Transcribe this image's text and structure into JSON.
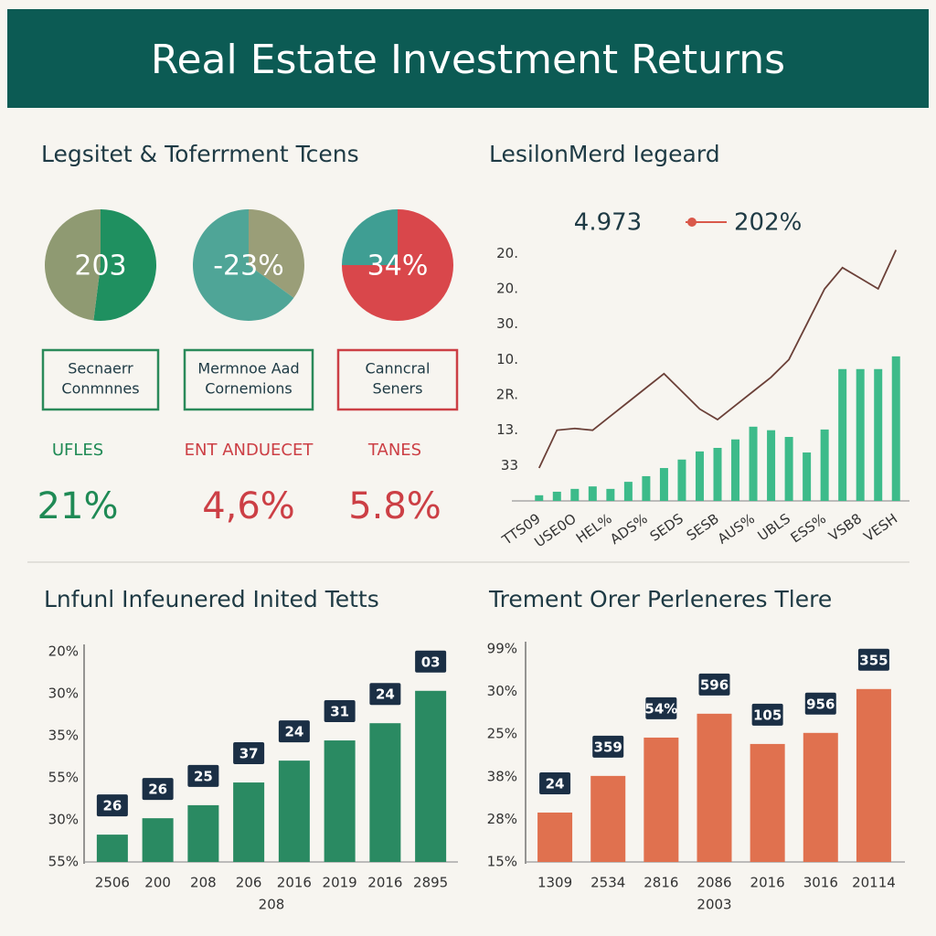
{
  "header": {
    "title": "Real Estate Investment Returns"
  },
  "summary": {
    "title": "Legsitet & Toferrment Tcens",
    "pies": [
      {
        "label": "203",
        "values": [
          52,
          48
        ],
        "colors": [
          "#1f9060",
          "#8f9a72"
        ]
      },
      {
        "label": "-23%",
        "values": [
          35,
          65
        ],
        "colors": [
          "#9a9e78",
          "#4fa597"
        ]
      },
      {
        "label": "34%",
        "values": [
          75,
          25
        ],
        "colors": [
          "#d9474b",
          "#3f9e93"
        ]
      }
    ],
    "boxes": [
      {
        "lines": [
          "Secnaerr",
          "Conmnnes"
        ],
        "color": "#2a8a5a"
      },
      {
        "lines": [
          "Mermnoe Aad",
          "Cornemions"
        ],
        "color": "#2a8a5a"
      },
      {
        "lines": [
          "Canncral",
          "Seners"
        ],
        "color": "#cc3f45"
      }
    ],
    "stats": [
      {
        "label": "UFLES",
        "value": "21%",
        "color": "#1f8a55"
      },
      {
        "label": "ENT ANDUECET",
        "value": "4,6%",
        "color": "#cc3f45"
      },
      {
        "label": "TANES",
        "value": "5.8%",
        "color": "#cc3f45"
      }
    ]
  },
  "chart_data": [
    {
      "type": "combo",
      "title": "LesilonMerd Iegeard",
      "categories": [
        "TTS09",
        null,
        "USE0O",
        null,
        "HEL%",
        null,
        "ADS%",
        null,
        "SEDS",
        null,
        "SESB",
        null,
        "AUS%",
        null,
        "UBLS",
        null,
        "ESS%",
        null,
        "VSB8",
        null,
        "VESH"
      ],
      "series": [
        {
          "name": "4.973",
          "type": "bar",
          "color": "#3dbb8a",
          "values": [
            0.16,
            0.26,
            0.34,
            0.41,
            0.34,
            0.54,
            0.7,
            0.93,
            1.17,
            1.4,
            1.5,
            1.74,
            2.1,
            2.0,
            1.81,
            1.37,
            2.02,
            3.73,
            3.73,
            3.73,
            4.09
          ]
        },
        {
          "name": "202%",
          "type": "line",
          "color": "#6b4038",
          "marker_color": "#d9584a",
          "values": [
            0.93,
            2.0,
            2.05,
            2.0,
            2.4,
            2.8,
            3.2,
            3.6,
            3.1,
            2.6,
            2.3,
            2.7,
            3.1,
            3.5,
            4.0,
            5.0,
            6.0,
            6.6,
            6.3,
            6.0,
            7.1
          ]
        }
      ],
      "ylim": [
        0,
        7.5
      ],
      "yticks": [
        {
          "value": 1,
          "label": "33"
        },
        {
          "value": 2,
          "label": "13."
        },
        {
          "value": 3,
          "label": "2R."
        },
        {
          "value": 4,
          "label": "10."
        },
        {
          "value": 5,
          "label": "30."
        },
        {
          "value": 6,
          "label": "20."
        },
        {
          "value": 7,
          "label": "20."
        }
      ]
    },
    {
      "type": "bar",
      "title": "Lnfunl Infeunered Inited Tetts",
      "x_label": "208",
      "categories": [
        "2506",
        "200",
        "208",
        "206",
        "2016",
        "2019",
        "2016",
        "2895"
      ],
      "values": [
        0.65,
        1.04,
        1.35,
        1.89,
        2.41,
        2.89,
        3.3,
        4.07
      ],
      "annotations": [
        "26",
        "26",
        "25",
        "37",
        "24",
        "31",
        "24",
        "03"
      ],
      "color": "#2a8a62",
      "ylim": [
        0,
        5
      ],
      "yticks": [
        {
          "value": 0,
          "label": "55%"
        },
        {
          "value": 1,
          "label": "30%"
        },
        {
          "value": 2,
          "label": "55%"
        },
        {
          "value": 3,
          "label": "35%"
        },
        {
          "value": 4,
          "label": "30%"
        },
        {
          "value": 5,
          "label": "20%"
        }
      ]
    },
    {
      "type": "bar",
      "title": "Trement Orer Perleneres Tlere",
      "x_label": "2003",
      "categories": [
        "1309",
        "2534",
        "2816",
        "2086",
        "2016",
        "3016",
        "20114"
      ],
      "values": [
        1.16,
        2.02,
        2.92,
        3.48,
        2.77,
        3.03,
        4.06
      ],
      "annotations": [
        "24",
        "359",
        "54%",
        "596",
        "105",
        "956",
        "355"
      ],
      "color": "#e0714f",
      "ylim": [
        0,
        5
      ],
      "yticks": [
        {
          "value": 0,
          "label": "15%"
        },
        {
          "value": 1,
          "label": "28%"
        },
        {
          "value": 2,
          "label": "38%"
        },
        {
          "value": 3,
          "label": "25%"
        },
        {
          "value": 4,
          "label": "30%"
        },
        {
          "value": 5,
          "label": "99%"
        }
      ]
    }
  ]
}
